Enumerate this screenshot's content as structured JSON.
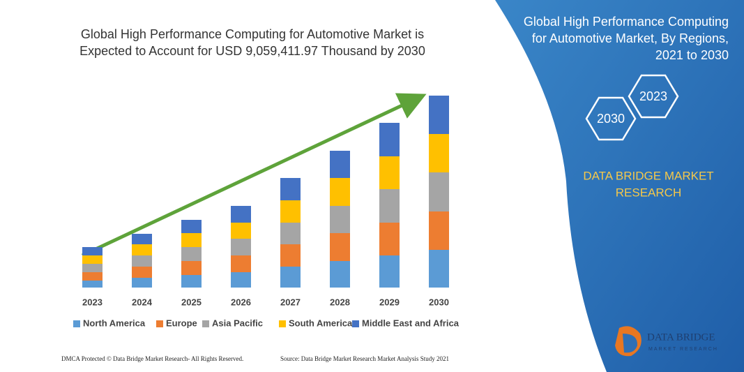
{
  "chart_data": {
    "type": "stacked_bar",
    "title": [
      "Global High Performance Computing for Automotive Market is",
      "Expected to Account for USD 9,059,411.97 Thousand by 2030"
    ],
    "categories": [
      "2023",
      "2024",
      "2025",
      "2026",
      "2027",
      "2028",
      "2029",
      "2030"
    ],
    "series": [
      {
        "name": "North America",
        "color": "#5b9bd5",
        "values": [
          10,
          14,
          18,
          22,
          30,
          38,
          46,
          54
        ]
      },
      {
        "name": "Europe",
        "color": "#ed7d31",
        "values": [
          12,
          16,
          20,
          24,
          32,
          40,
          47,
          55
        ]
      },
      {
        "name": "Asia Pacific",
        "color": "#a5a5a5",
        "values": [
          12,
          16,
          20,
          24,
          31,
          39,
          48,
          56
        ]
      },
      {
        "name": "South America",
        "color": "#ffc000",
        "values": [
          12,
          16,
          20,
          23,
          32,
          40,
          47,
          55
        ]
      },
      {
        "name": "Middle East and Africa",
        "color": "#4472c4",
        "values": [
          12,
          15,
          19,
          24,
          32,
          39,
          48,
          55
        ]
      }
    ],
    "footer": {
      "left": "DMCA Protected © Data Bridge Market Research- All Rights Reserved.",
      "right": "Source: Data Bridge Market Research Market Analysis Study 2021"
    }
  },
  "panel": {
    "title": [
      "Global High Performance Computing",
      "for Automotive Market, By Regions,",
      "2021 to 2030"
    ],
    "hex_a": "2023",
    "hex_b": "2030",
    "brand": [
      "DATA BRIDGE MARKET",
      "RESEARCH"
    ],
    "logo": [
      "DATA BRIDGE",
      "MARKET RESEARCH"
    ]
  }
}
